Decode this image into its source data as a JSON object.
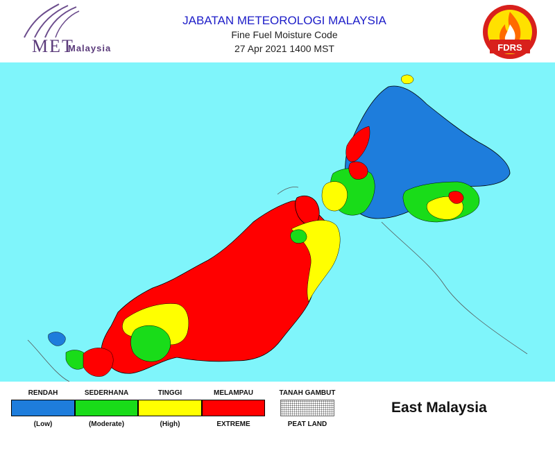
{
  "header": {
    "agency": "JABATAN METEOROLOGI MALAYSIA",
    "product": "Fine Fuel Moisture Code",
    "datetime": "27 Apr 2021 1400 MST",
    "logo_main": "MET",
    "logo_sub": "Malaysia",
    "badge": "FDRS"
  },
  "colors": {
    "sea": "#7ff5fb",
    "low": "#1e7ddc",
    "moderate": "#19dc19",
    "high": "#ffff00",
    "extreme": "#ff0000",
    "border": "#000000"
  },
  "legend": {
    "items": [
      {
        "top": "RENDAH",
        "bottom": "(Low)",
        "color": "#1e7ddc"
      },
      {
        "top": "SEDERHANA",
        "bottom": "(Moderate)",
        "color": "#19dc19"
      },
      {
        "top": "TINGGI",
        "bottom": "(High)",
        "color": "#ffff00"
      },
      {
        "top": "MELAMPAU",
        "bottom": "EXTREME",
        "color": "#ff0000"
      }
    ],
    "peat_top": "TANAH GAMBUT",
    "peat_bottom": "PEAT LAND"
  },
  "region": "East Malaysia"
}
